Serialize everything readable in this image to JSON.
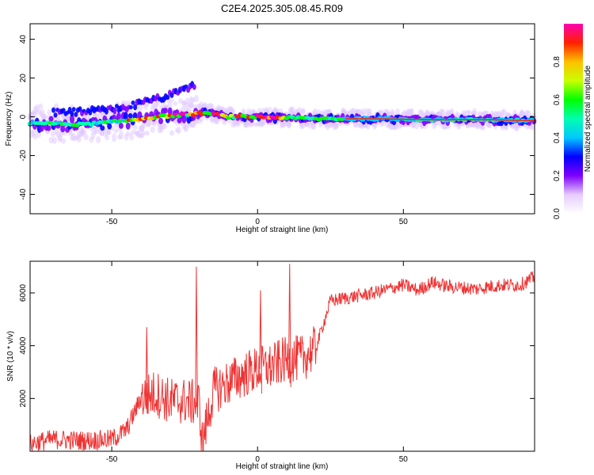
{
  "title": "C2E4.2025.305.08.45.R09",
  "chart_data": [
    {
      "type": "heatmap",
      "title": "C2E4.2025.305.08.45.R09",
      "xlabel": "Height of straight line (km)",
      "ylabel": "Frequency (Hz)",
      "xlim": [
        -78,
        95
      ],
      "ylim": [
        -50,
        48
      ],
      "xticks": [
        -50,
        0,
        50
      ],
      "yticks": [
        -40,
        -20,
        0,
        20,
        40
      ],
      "colorbar": {
        "label": "Normalized spectral amplitude",
        "range": [
          0,
          1
        ],
        "ticks": [
          "0.0",
          "0.2",
          "0.4",
          "0.6",
          "0.8"
        ],
        "tick_values": [
          0.0,
          0.2,
          0.4,
          0.6,
          0.8
        ],
        "colors": [
          "#ffffff",
          "#e6ccff",
          "#8000ff",
          "#0000ff",
          "#00c8ff",
          "#00ffb0",
          "#00ff00",
          "#c8ff00",
          "#ffc000",
          "#ff2000",
          "#ff00b0"
        ]
      },
      "ridge": {
        "x": [
          -78,
          -60,
          -45,
          -35,
          -25,
          -18,
          -10,
          0,
          20,
          40,
          60,
          80,
          95
        ],
        "freq": [
          -3,
          -4,
          -2,
          0,
          1,
          2,
          0,
          0,
          -1,
          -1,
          -1.5,
          -1.5,
          -2
        ]
      },
      "upper_branch": {
        "x": [
          -70,
          -55,
          -45,
          -35,
          -28,
          -21
        ],
        "freq": [
          2,
          3,
          5,
          9,
          12,
          17
        ]
      }
    },
    {
      "type": "line",
      "xlabel": "Height of straight line (km)",
      "ylabel": "SNR (10 * v/v)",
      "xlim": [
        -78,
        95
      ],
      "ylim": [
        0,
        7200
      ],
      "xticks": [
        -50,
        0,
        50
      ],
      "yticks": [
        2000,
        4000,
        6000
      ],
      "series": [
        {
          "name": "SNR",
          "color": "#ee3333",
          "x": [
            -78,
            -70,
            -60,
            -50,
            -45,
            -40,
            -35,
            -30,
            -25,
            -20,
            -19,
            -15,
            -10,
            -5,
            0,
            5,
            8,
            12,
            15,
            20,
            25,
            30,
            40,
            50,
            55,
            60,
            65,
            70,
            75,
            80,
            85,
            90,
            95
          ],
          "y": [
            300,
            450,
            400,
            450,
            800,
            2000,
            2200,
            1900,
            1900,
            1800,
            300,
            2300,
            2600,
            2900,
            3100,
            3200,
            3400,
            3500,
            3500,
            3900,
            5700,
            5800,
            6000,
            6300,
            6100,
            6400,
            6250,
            6200,
            6150,
            6250,
            6300,
            6300,
            6600
          ]
        }
      ],
      "spikes": {
        "x": [
          -38,
          -21,
          11,
          1
        ],
        "y": [
          4700,
          7000,
          7100,
          6100
        ]
      }
    }
  ]
}
